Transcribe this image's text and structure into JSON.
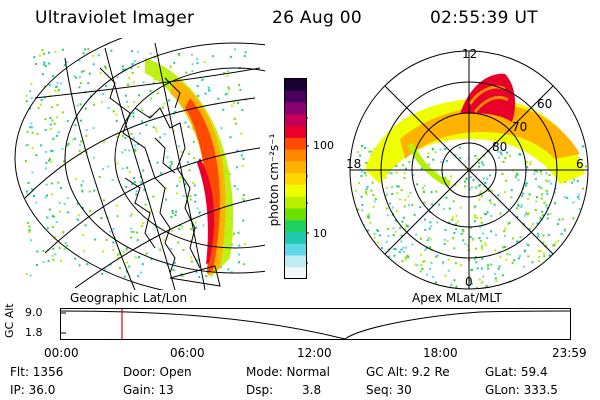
{
  "header": {
    "instrument": "Ultraviolet Imager",
    "date": "26 Aug 00",
    "time": "02:55:39 UT"
  },
  "left_panel": {
    "caption": "Geographic Lat/Lon"
  },
  "right_panel": {
    "caption": "Apex MLat/MLT",
    "mlt_labels": [
      "12",
      "18",
      "6",
      "0"
    ],
    "mlat_labels": [
      "60",
      "70",
      "80"
    ]
  },
  "colorbar": {
    "label": "photon cm⁻²s⁻¹",
    "ticks": [
      "100",
      "10"
    ],
    "colors": [
      "#1a0033",
      "#4a0060",
      "#8a0070",
      "#c4005a",
      "#e8002a",
      "#ff4a00",
      "#ff8800",
      "#ffb300",
      "#ffd800",
      "#f0ff00",
      "#b8f000",
      "#6ee000",
      "#20d060",
      "#20c8b0",
      "#60d8e8",
      "#c0ecf4",
      "#f4f8fa"
    ]
  },
  "timeline": {
    "y_axis_label": "GC Alt",
    "y_ticks": [
      "9.0",
      "1.8"
    ],
    "x_ticks": [
      "00:00",
      "06:00",
      "12:00",
      "18:00",
      "23:59"
    ],
    "marker_time": "02:55"
  },
  "footer": {
    "flt": "Flt: 1356",
    "ip": "IP: 36.0",
    "door": "Door: Open",
    "gain": "Gain: 13",
    "mode": "Mode: Normal",
    "dsp_label": "Dsp:",
    "dsp_value": "3.8",
    "gc_alt": "GC Alt: 9.2 Re",
    "seq": "Seq: 30",
    "glat": "GLat: 59.4",
    "glon": "GLon: 333.5"
  }
}
